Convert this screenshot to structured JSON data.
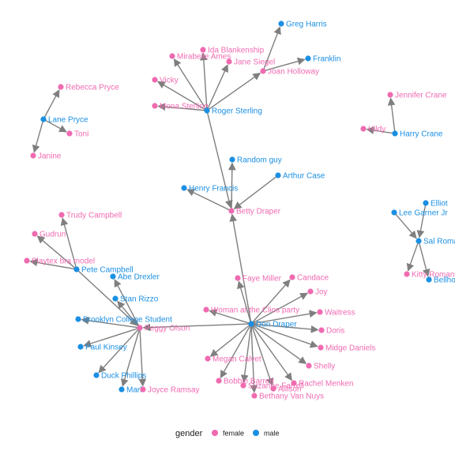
{
  "colors": {
    "female": "#f06ab1",
    "male": "#1a8fe3",
    "edge": "#7f7f7f"
  },
  "legend": {
    "title": "gender",
    "items": [
      {
        "label": "female",
        "group": "female"
      },
      {
        "label": "male",
        "group": "male"
      }
    ]
  },
  "nodes": [
    {
      "id": "greg",
      "label": "Greg Harris",
      "gender": "male"
    },
    {
      "id": "ida",
      "label": "Ida Blankenship",
      "gender": "female"
    },
    {
      "id": "mirabelle",
      "label": "Mirabelle Ames",
      "gender": "female"
    },
    {
      "id": "jane",
      "label": "Jane Siegel",
      "gender": "female"
    },
    {
      "id": "franklin",
      "label": "Franklin",
      "gender": "male"
    },
    {
      "id": "joan",
      "label": "Joan Holloway",
      "gender": "female"
    },
    {
      "id": "vicky",
      "label": "Vicky",
      "gender": "female"
    },
    {
      "id": "mona",
      "label": "Mona Sterling",
      "gender": "female"
    },
    {
      "id": "roger",
      "label": "Roger Sterling",
      "gender": "male"
    },
    {
      "id": "rebecca",
      "label": "Rebecca Pryce",
      "gender": "female"
    },
    {
      "id": "lane",
      "label": "Lane Pryce",
      "gender": "male"
    },
    {
      "id": "toni",
      "label": "Toni",
      "gender": "female"
    },
    {
      "id": "janine",
      "label": "Janine",
      "gender": "female"
    },
    {
      "id": "jennifer",
      "label": "Jennifer Crane",
      "gender": "female"
    },
    {
      "id": "hildy",
      "label": "Hildy",
      "gender": "female"
    },
    {
      "id": "harry",
      "label": "Harry Crane",
      "gender": "male"
    },
    {
      "id": "random",
      "label": "Random guy",
      "gender": "male"
    },
    {
      "id": "arthur",
      "label": "Arthur Case",
      "gender": "male"
    },
    {
      "id": "henry",
      "label": "Henry Francis",
      "gender": "male"
    },
    {
      "id": "betty",
      "label": "Betty Draper",
      "gender": "female"
    },
    {
      "id": "elliot",
      "label": "Elliot",
      "gender": "male"
    },
    {
      "id": "leegarner",
      "label": "Lee Garner Jr",
      "gender": "male"
    },
    {
      "id": "sal",
      "label": "Sal Romano",
      "gender": "male"
    },
    {
      "id": "kitty",
      "label": "Kitty Romano",
      "gender": "female"
    },
    {
      "id": "bellhop",
      "label": "Bellhop",
      "gender": "male"
    },
    {
      "id": "trudy",
      "label": "Trudy Campbell",
      "gender": "female"
    },
    {
      "id": "gudrun",
      "label": "Gudrun",
      "gender": "female"
    },
    {
      "id": "playtex",
      "label": "Playtex bra model",
      "gender": "female"
    },
    {
      "id": "pete",
      "label": "Pete Campbell",
      "gender": "male"
    },
    {
      "id": "abe",
      "label": "Abe Drexler",
      "gender": "male"
    },
    {
      "id": "stan",
      "label": "Stan Rizzo",
      "gender": "male"
    },
    {
      "id": "brooklyn",
      "label": "Brooklyn College Student",
      "gender": "male"
    },
    {
      "id": "peggy",
      "label": "Peggy Olson",
      "gender": "female"
    },
    {
      "id": "paul",
      "label": "Paul Kinsey",
      "gender": "male"
    },
    {
      "id": "duck",
      "label": "Duck Phillips",
      "gender": "male"
    },
    {
      "id": "mark",
      "label": "Mark",
      "gender": "male"
    },
    {
      "id": "joyce",
      "label": "Joyce Ramsay",
      "gender": "female"
    },
    {
      "id": "faye",
      "label": "Faye Miller",
      "gender": "female"
    },
    {
      "id": "candace",
      "label": "Candace",
      "gender": "female"
    },
    {
      "id": "joy",
      "label": "Joy",
      "gender": "female"
    },
    {
      "id": "woman",
      "label": "Woman at the Clios party",
      "gender": "female"
    },
    {
      "id": "don",
      "label": "Don Draper",
      "gender": "male"
    },
    {
      "id": "waitress",
      "label": "Waitress",
      "gender": "female"
    },
    {
      "id": "doris",
      "label": "Doris",
      "gender": "female"
    },
    {
      "id": "midge",
      "label": "Midge Daniels",
      "gender": "female"
    },
    {
      "id": "megan",
      "label": "Megan Calvet",
      "gender": "female"
    },
    {
      "id": "shelly",
      "label": "Shelly",
      "gender": "female"
    },
    {
      "id": "bobbie",
      "label": "Bobbie Barrett",
      "gender": "female"
    },
    {
      "id": "suzanne",
      "label": "Suzanne Farrell",
      "gender": "female"
    },
    {
      "id": "rachel",
      "label": "Rachel Menken",
      "gender": "female"
    },
    {
      "id": "allison",
      "label": "Allison",
      "gender": "female"
    },
    {
      "id": "bethany",
      "label": "Bethany Van Nuys",
      "gender": "female"
    }
  ],
  "edges": [
    [
      "joan",
      "greg"
    ],
    [
      "joan",
      "franklin"
    ],
    [
      "roger",
      "joan"
    ],
    [
      "roger",
      "ida"
    ],
    [
      "roger",
      "mirabelle"
    ],
    [
      "roger",
      "jane"
    ],
    [
      "roger",
      "vicky"
    ],
    [
      "roger",
      "mona"
    ],
    [
      "roger",
      "betty"
    ],
    [
      "lane",
      "rebecca"
    ],
    [
      "lane",
      "toni"
    ],
    [
      "lane",
      "janine"
    ],
    [
      "harry",
      "jennifer"
    ],
    [
      "harry",
      "hildy"
    ],
    [
      "betty",
      "random"
    ],
    [
      "arthur",
      "betty"
    ],
    [
      "betty",
      "henry"
    ],
    [
      "elliot",
      "sal"
    ],
    [
      "leegarner",
      "sal"
    ],
    [
      "sal",
      "kitty"
    ],
    [
      "sal",
      "bellhop"
    ],
    [
      "pete",
      "trudy"
    ],
    [
      "pete",
      "gudrun"
    ],
    [
      "pete",
      "playtex"
    ],
    [
      "pete",
      "peggy"
    ],
    [
      "peggy",
      "abe"
    ],
    [
      "peggy",
      "stan"
    ],
    [
      "peggy",
      "brooklyn"
    ],
    [
      "peggy",
      "paul"
    ],
    [
      "peggy",
      "duck"
    ],
    [
      "peggy",
      "mark"
    ],
    [
      "peggy",
      "joyce"
    ],
    [
      "don",
      "peggy"
    ],
    [
      "don",
      "betty"
    ],
    [
      "don",
      "faye"
    ],
    [
      "don",
      "candace"
    ],
    [
      "don",
      "joy"
    ],
    [
      "don",
      "woman"
    ],
    [
      "don",
      "waitress"
    ],
    [
      "don",
      "doris"
    ],
    [
      "don",
      "midge"
    ],
    [
      "don",
      "megan"
    ],
    [
      "don",
      "shelly"
    ],
    [
      "don",
      "bobbie"
    ],
    [
      "don",
      "suzanne"
    ],
    [
      "don",
      "rachel"
    ],
    [
      "don",
      "allison"
    ],
    [
      "don",
      "bethany"
    ]
  ]
}
